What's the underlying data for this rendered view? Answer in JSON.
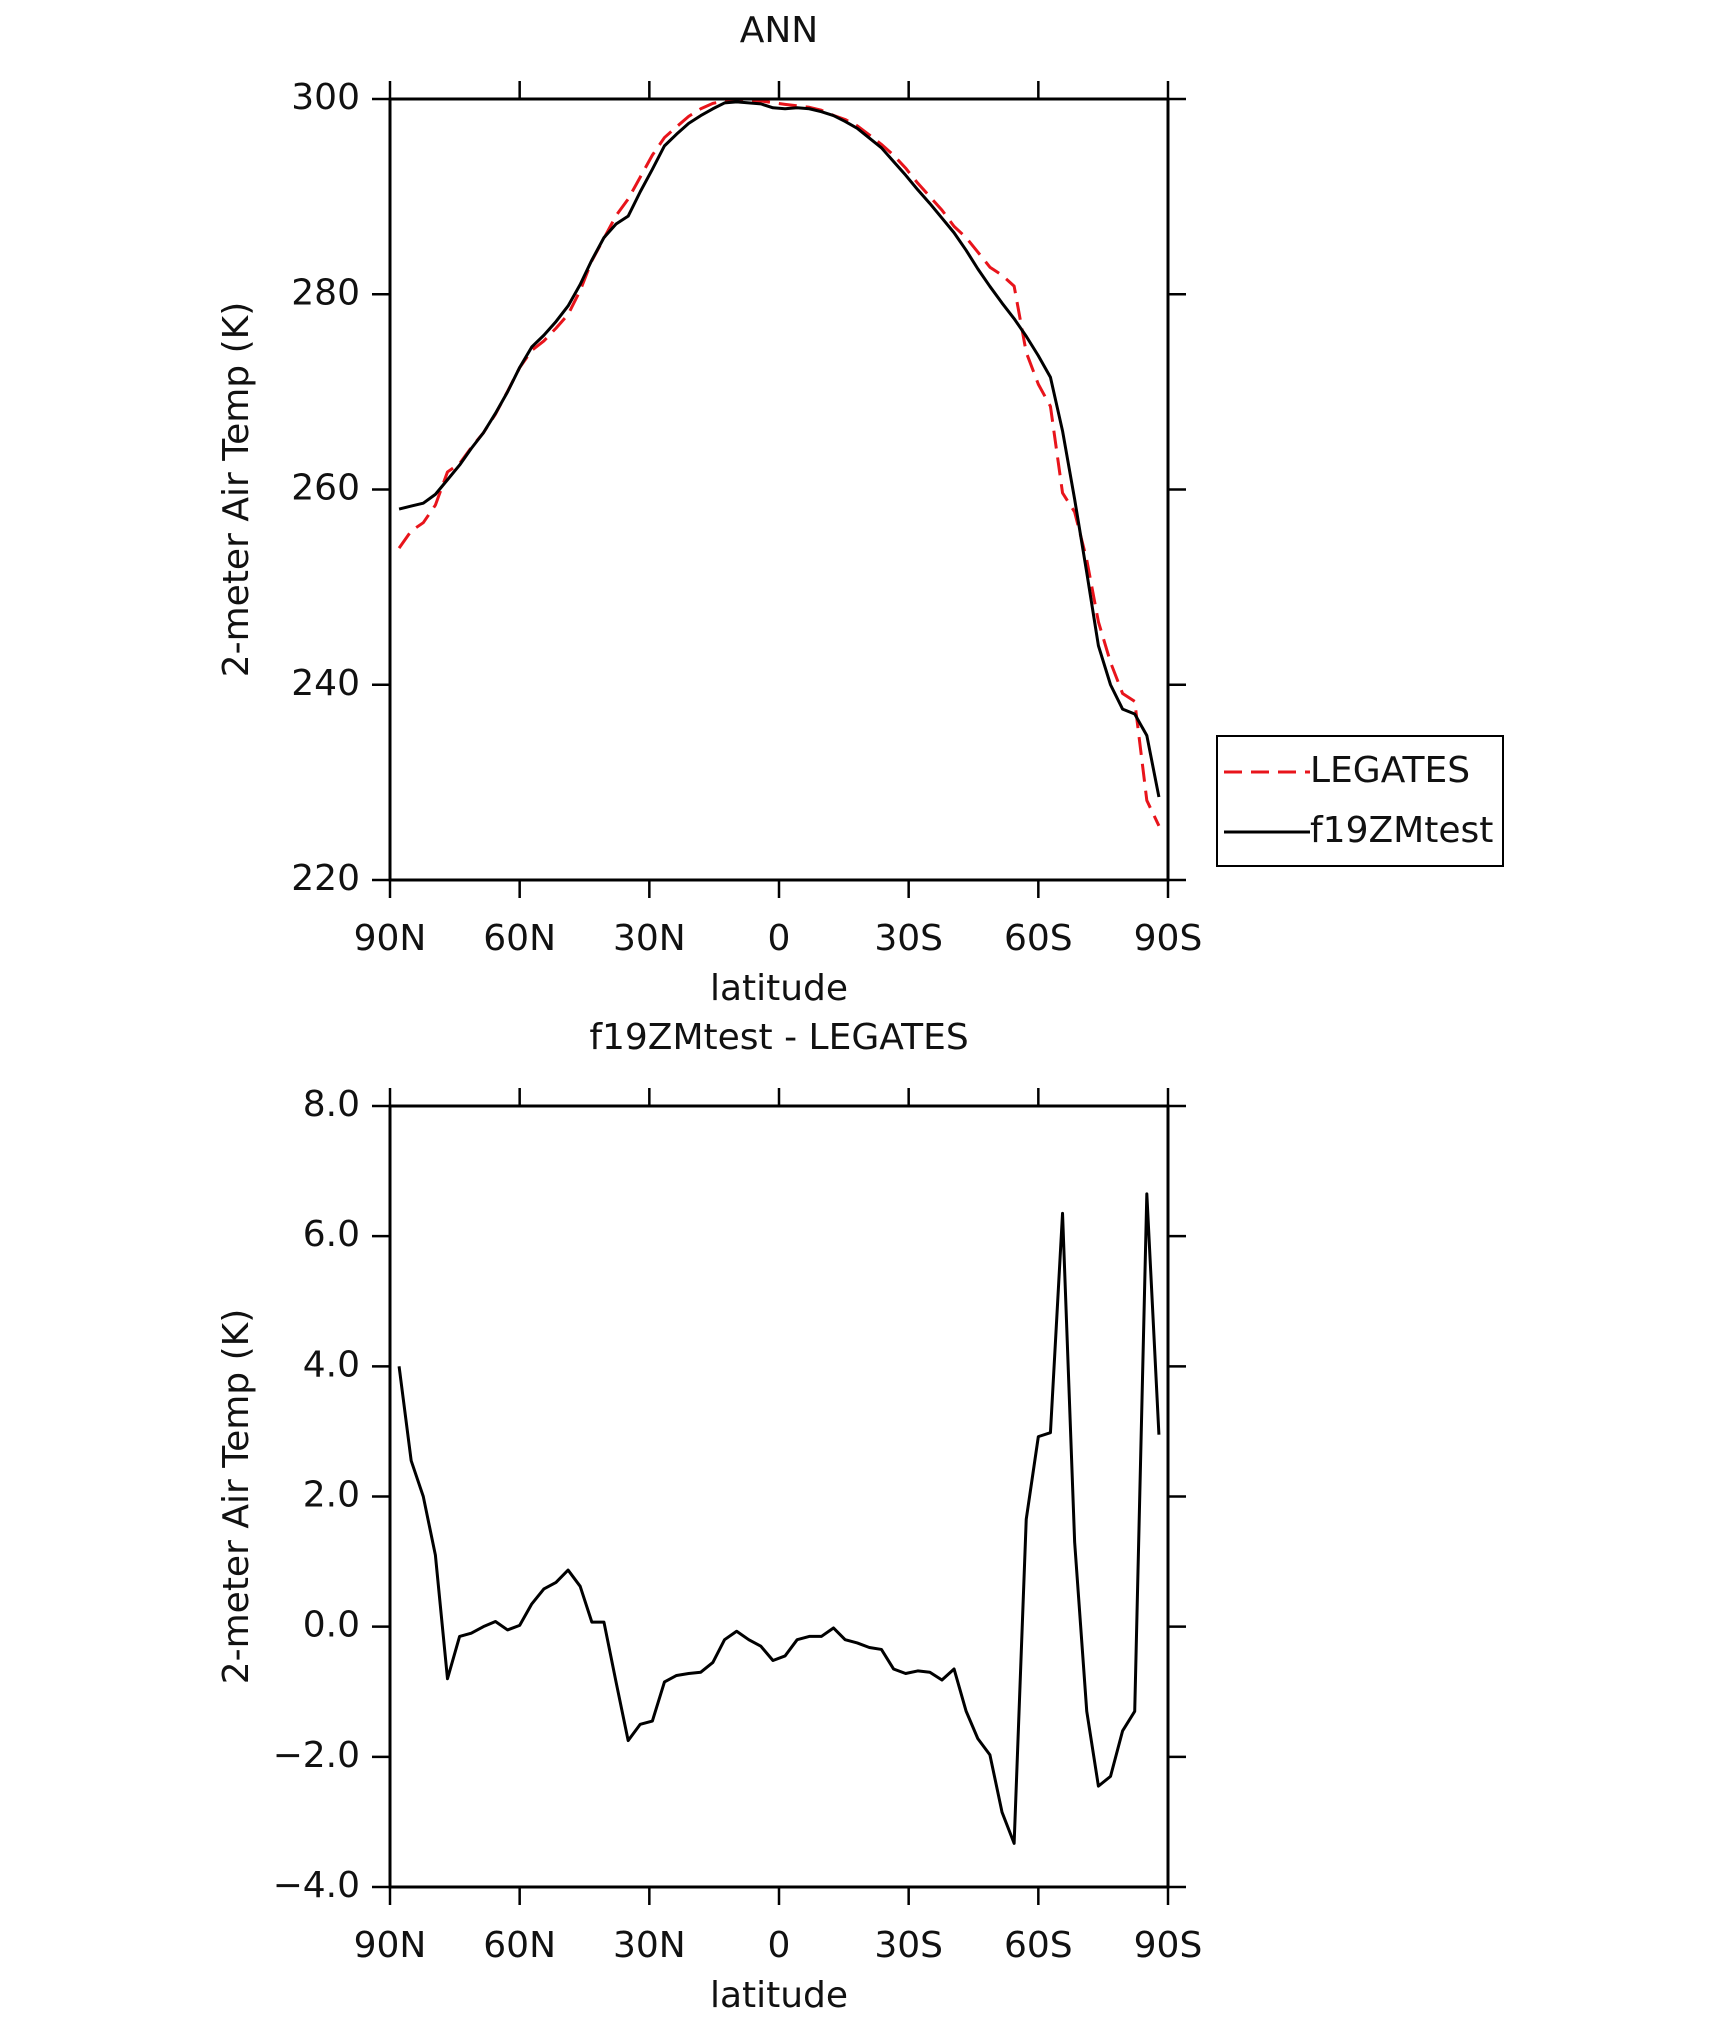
{
  "chart_data": [
    {
      "type": "line",
      "title": "ANN",
      "xlabel": "latitude",
      "ylabel": "2-meter Air Temp (K)",
      "x": [
        87.9,
        85.1,
        82.3,
        79.5,
        76.7,
        73.9,
        71.2,
        68.4,
        65.6,
        62.8,
        60.0,
        57.2,
        54.4,
        51.6,
        48.8,
        46.0,
        43.3,
        40.5,
        37.7,
        34.9,
        32.1,
        29.3,
        26.5,
        23.7,
        20.9,
        18.1,
        15.3,
        12.6,
        9.8,
        7.0,
        4.2,
        1.4,
        -1.4,
        -4.2,
        -7.0,
        -9.8,
        -12.6,
        -15.3,
        -18.1,
        -20.9,
        -23.7,
        -26.5,
        -29.3,
        -32.1,
        -34.9,
        -37.7,
        -40.5,
        -43.3,
        -46.0,
        -48.8,
        -51.6,
        -54.4,
        -57.2,
        -60.0,
        -62.8,
        -65.6,
        -68.4,
        -71.2,
        -73.9,
        -76.7,
        -79.5,
        -82.3,
        -85.1,
        -87.9
      ],
      "series": [
        {
          "name": "LEGATES",
          "color": "#e8141b",
          "dash": "dashed",
          "values": [
            254.0,
            255.75,
            256.6,
            258.4,
            261.8,
            262.65,
            264.3,
            265.8,
            267.72,
            270.05,
            272.48,
            274.25,
            275.22,
            276.52,
            277.93,
            280.38,
            283.43,
            285.73,
            288.05,
            289.75,
            292.0,
            294.25,
            296.05,
            297.15,
            298.22,
            299.0,
            299.55,
            299.8,
            299.77,
            299.8,
            299.8,
            299.62,
            299.45,
            299.3,
            299.15,
            298.85,
            298.32,
            297.9,
            297.25,
            296.32,
            295.35,
            294.25,
            292.92,
            291.38,
            290.0,
            288.62,
            286.95,
            285.8,
            284.32,
            282.77,
            281.95,
            280.83,
            274.05,
            270.78,
            268.52,
            259.65,
            257.7,
            252.8,
            246.45,
            242.3,
            239.1,
            238.3,
            228.15,
            225.55
          ]
        },
        {
          "name": "f19ZMtest",
          "color": "#000000",
          "dash": "solid",
          "values": [
            258.0,
            258.3,
            258.6,
            259.5,
            261.0,
            262.5,
            264.2,
            265.8,
            267.8,
            270.0,
            272.5,
            274.6,
            275.8,
            277.2,
            278.8,
            281.0,
            283.5,
            285.8,
            287.2,
            288.0,
            290.5,
            292.8,
            295.2,
            296.4,
            297.5,
            298.3,
            299.0,
            299.6,
            299.7,
            299.6,
            299.5,
            299.1,
            299.0,
            299.1,
            299.0,
            298.7,
            298.3,
            297.7,
            297.0,
            296.0,
            295.0,
            293.6,
            292.2,
            290.7,
            289.3,
            287.8,
            286.3,
            284.5,
            282.6,
            280.8,
            279.1,
            277.5,
            275.7,
            273.7,
            271.5,
            266.0,
            259.0,
            251.5,
            244.0,
            240.0,
            237.5,
            237.0,
            234.8,
            228.5
          ]
        }
      ],
      "xlim": [
        90,
        -90
      ],
      "xticks": [
        {
          "value": 90,
          "label": "90N"
        },
        {
          "value": 60,
          "label": "60N"
        },
        {
          "value": 30,
          "label": "30N"
        },
        0,
        {
          "value": -30,
          "label": "30S"
        },
        {
          "value": -60,
          "label": "60S"
        },
        {
          "value": -90,
          "label": "90S"
        }
      ],
      "ylim": [
        220,
        300
      ],
      "yticks": [
        220,
        240,
        260,
        280,
        300
      ],
      "grid": false,
      "legend": "right"
    },
    {
      "type": "line",
      "title": "f19ZMtest - LEGATES",
      "xlabel": "latitude",
      "ylabel": "2-meter Air Temp (K)",
      "color": "#000000",
      "x": [
        87.9,
        85.1,
        82.3,
        79.5,
        76.7,
        73.9,
        71.2,
        68.4,
        65.6,
        62.8,
        60.0,
        57.2,
        54.4,
        51.6,
        48.8,
        46.0,
        43.3,
        40.5,
        37.7,
        34.9,
        32.1,
        29.3,
        26.5,
        23.7,
        20.9,
        18.1,
        15.3,
        12.6,
        9.8,
        7.0,
        4.2,
        1.4,
        -1.4,
        -4.2,
        -7.0,
        -9.8,
        -12.6,
        -15.3,
        -18.1,
        -20.9,
        -23.7,
        -26.5,
        -29.3,
        -32.1,
        -34.9,
        -37.7,
        -40.5,
        -43.3,
        -46.0,
        -48.8,
        -51.6,
        -54.4,
        -57.2,
        -60.0,
        -62.8,
        -65.6,
        -68.4,
        -71.2,
        -73.9,
        -76.7,
        -79.5,
        -82.3,
        -85.1,
        -87.9
      ],
      "values": [
        4.0,
        2.55,
        2.0,
        1.1,
        -0.8,
        -0.15,
        -0.1,
        0.0,
        0.08,
        -0.05,
        0.02,
        0.35,
        0.58,
        0.68,
        0.87,
        0.62,
        0.07,
        0.07,
        -0.85,
        -1.75,
        -1.5,
        -1.45,
        -0.85,
        -0.75,
        -0.72,
        -0.7,
        -0.55,
        -0.2,
        -0.07,
        -0.2,
        -0.3,
        -0.52,
        -0.45,
        -0.2,
        -0.15,
        -0.15,
        -0.02,
        -0.2,
        -0.25,
        -0.32,
        -0.35,
        -0.65,
        -0.72,
        -0.68,
        -0.7,
        -0.82,
        -0.65,
        -1.3,
        -1.72,
        -1.97,
        -2.85,
        -3.33,
        1.65,
        2.92,
        2.98,
        6.35,
        1.3,
        -1.3,
        -2.45,
        -2.3,
        -1.6,
        -1.3,
        6.65,
        2.95
      ],
      "xlim": [
        90,
        -90
      ],
      "xticks": [
        {
          "value": 90,
          "label": "90N"
        },
        {
          "value": 60,
          "label": "60N"
        },
        {
          "value": 30,
          "label": "30N"
        },
        0,
        {
          "value": -30,
          "label": "30S"
        },
        {
          "value": -60,
          "label": "60S"
        },
        {
          "value": -90,
          "label": "90S"
        }
      ],
      "ylim": [
        -4,
        8
      ],
      "yticks": [
        {
          "value": -4,
          "label": "−4.0"
        },
        {
          "value": -2,
          "label": "−2.0"
        },
        {
          "value": 0,
          "label": "0.0"
        },
        {
          "value": 2,
          "label": "2.0"
        },
        {
          "value": 4,
          "label": "4.0"
        },
        {
          "value": 6,
          "label": "6.0"
        },
        {
          "value": 8,
          "label": "8.0"
        }
      ],
      "grid": false
    }
  ]
}
